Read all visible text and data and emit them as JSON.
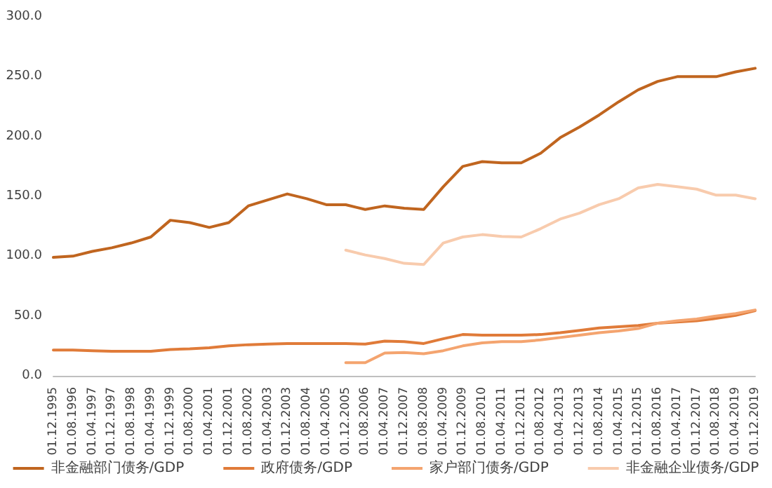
{
  "chart_data": {
    "type": "line",
    "categories": [
      "01.12.1995",
      "01.08.1996",
      "01.04.1997",
      "01.12.1997",
      "01.08.1998",
      "01.04.1999",
      "01.12.1999",
      "01.08.2000",
      "01.04.2001",
      "01.12.2001",
      "01.08.2002",
      "01.04.2003",
      "01.12.2003",
      "01.08.2004",
      "01.04.2005",
      "01.12.2005",
      "01.08.2006",
      "01.04.2007",
      "01.12.2007",
      "01.08.2008",
      "01.04.2009",
      "01.12.2009",
      "01.08.2010",
      "01.04.2011",
      "01.12.2011",
      "01.08.2012",
      "01.04.2013",
      "01.12.2013",
      "01.08.2014",
      "01.04.2015",
      "01.12.2015",
      "01.08.2016",
      "01.04.2017",
      "01.12.2017",
      "01.08.2018",
      "01.04.2019",
      "01.12.2019"
    ],
    "series": [
      {
        "name": "非金融部门债务/GDP",
        "color": "#c0651f",
        "values": [
          99,
          100,
          104,
          107,
          111,
          116,
          130,
          128,
          124,
          128,
          142,
          147,
          152,
          148,
          143,
          143,
          139,
          142,
          140,
          139,
          158,
          175,
          179,
          178,
          178,
          186,
          199,
          208,
          218,
          229,
          239,
          246,
          250,
          250,
          250,
          254,
          257
        ]
      },
      {
        "name": "政府债务/GDP",
        "color": "#e07b39",
        "values": [
          21.5,
          21.5,
          21,
          20.5,
          20.5,
          20.5,
          22,
          22.5,
          23.5,
          25,
          26,
          26.5,
          27,
          27,
          27,
          27,
          26.5,
          29,
          28.5,
          27,
          31,
          34.5,
          34,
          34,
          34,
          34.5,
          36,
          38,
          40,
          41,
          42,
          44,
          45,
          46,
          48,
          50.5,
          54.5
        ]
      },
      {
        "name": "家户部门债务/GDP",
        "color": "#f4a46f",
        "values": [
          null,
          null,
          null,
          null,
          null,
          null,
          null,
          null,
          null,
          null,
          null,
          null,
          null,
          null,
          null,
          11,
          11,
          19,
          19.5,
          18.5,
          21,
          25,
          27.5,
          28.5,
          28.5,
          30,
          32,
          34,
          36,
          37.5,
          39.5,
          44,
          46,
          47.5,
          50,
          52,
          55
        ]
      },
      {
        "name": "非金融企业债务/GDP",
        "color": "#f8cbad",
        "values": [
          null,
          null,
          null,
          null,
          null,
          null,
          null,
          null,
          null,
          null,
          null,
          null,
          null,
          null,
          null,
          105,
          101,
          98,
          94,
          93,
          111,
          116,
          118,
          116.5,
          116,
          123,
          131,
          136,
          143,
          148,
          157,
          160,
          158,
          156,
          151,
          151,
          148
        ]
      }
    ],
    "ylim": [
      0,
      300
    ],
    "yticks": [
      {
        "value": 0,
        "label": "0.0"
      },
      {
        "value": 50,
        "label": "50.0"
      },
      {
        "value": 100,
        "label": "100.0"
      },
      {
        "value": 150,
        "label": "150.0"
      },
      {
        "value": 200,
        "label": "200.0"
      },
      {
        "value": 250,
        "label": "250.0"
      },
      {
        "value": 300,
        "label": "300.0"
      }
    ],
    "legend": "bottom",
    "grid": false,
    "marker": "none",
    "line_style": "solid"
  }
}
